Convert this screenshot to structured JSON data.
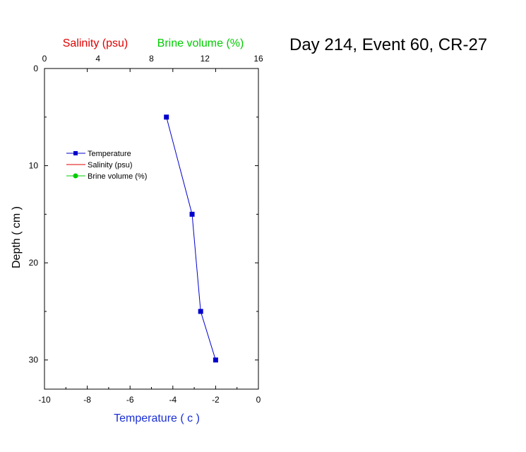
{
  "chart_data": {
    "type": "line",
    "title": "Day 214, Event 60, CR-27",
    "xlabel": "Temperature ( c )",
    "ylabel": "Depth ( cm )",
    "top_axis_labels": [
      {
        "text": "Salinity (psu)",
        "color": "#e00000"
      },
      {
        "text": "Brine volume (%)",
        "color": "#00cc00"
      }
    ],
    "xlim": [
      -10,
      0
    ],
    "ylim": [
      33,
      0
    ],
    "top_xlim": [
      0,
      16
    ],
    "xticks": [
      "-10",
      "-8",
      "-6",
      "-4",
      "-2",
      "0"
    ],
    "xtick_values": [
      -10,
      -8,
      -6,
      -4,
      -2,
      0
    ],
    "yticks": [
      "0",
      "10",
      "20",
      "30"
    ],
    "ytick_values": [
      0,
      10,
      20,
      30
    ],
    "top_xticks": [
      "0",
      "4",
      "8",
      "12",
      "16"
    ],
    "top_xtick_values": [
      0,
      4,
      8,
      12,
      16
    ],
    "grid": false,
    "legend_position": "middle-left",
    "series": [
      {
        "name": "Temperature",
        "color": "#0000cc",
        "marker": "square",
        "points": [
          {
            "x": -4.3,
            "y": 5
          },
          {
            "x": -3.1,
            "y": 15
          },
          {
            "x": -2.7,
            "y": 25
          },
          {
            "x": -2.0,
            "y": 30
          }
        ]
      },
      {
        "name": "Salinity (psu)",
        "color": "#e00000",
        "marker": "none",
        "points": []
      },
      {
        "name": "Brine volume (%)",
        "color": "#00cc00",
        "marker": "circle",
        "points": []
      }
    ]
  }
}
